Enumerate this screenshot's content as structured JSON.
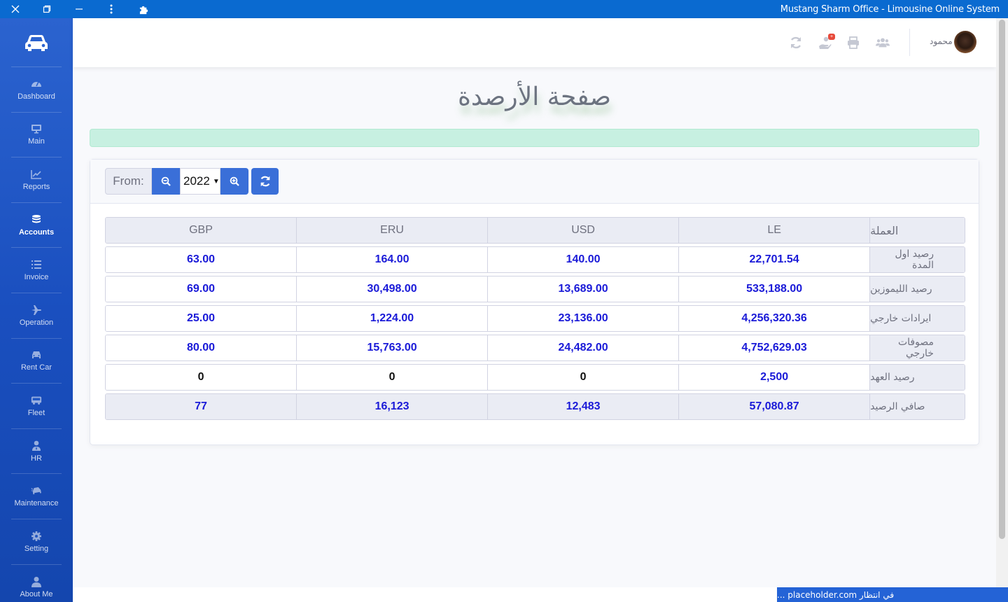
{
  "window": {
    "title": "Mustang Sharm Office - Limousine Online System"
  },
  "sidebar": {
    "brand_icon": "car-icon",
    "items": [
      {
        "label": "Dashboard",
        "icon": "tachometer-icon",
        "active": false
      },
      {
        "label": "Main",
        "icon": "desktop-icon",
        "active": false
      },
      {
        "label": "Reports",
        "icon": "chart-line-icon",
        "active": false
      },
      {
        "label": "Accounts",
        "icon": "coins-icon",
        "active": true
      },
      {
        "label": "Invoice",
        "icon": "list-icon",
        "active": false
      },
      {
        "label": "Operation",
        "icon": "plane-icon",
        "active": false
      },
      {
        "label": "Rent Car",
        "icon": "car-icon",
        "active": false
      },
      {
        "label": "Fleet",
        "icon": "bus-icon",
        "active": false
      },
      {
        "label": "HR",
        "icon": "user-tie-icon",
        "active": false
      },
      {
        "label": "Maintenance",
        "icon": "car-crash-icon",
        "active": false
      },
      {
        "label": "Setting",
        "icon": "cog-icon",
        "active": false
      },
      {
        "label": "About Me",
        "icon": "user-icon",
        "active": false
      }
    ]
  },
  "topbar": {
    "user_name": "محمود",
    "notification_badge": "+"
  },
  "page": {
    "title": "صفحة الأرصدة"
  },
  "filter": {
    "from_label": "From:",
    "year": "2022"
  },
  "table": {
    "headers": [
      "العملة",
      "LE",
      "USD",
      "ERU",
      "GBP"
    ],
    "rows": [
      {
        "label": "رصيد اول المدة",
        "values": [
          "22,701.54",
          "140.00",
          "164.00",
          "63.00"
        ]
      },
      {
        "label": "رصيد الليموزين",
        "values": [
          "533,188.00",
          "13,689.00",
          "30,498.00",
          "69.00"
        ]
      },
      {
        "label": "ايرادات خارجي",
        "values": [
          "4,256,320.36",
          "23,136.00",
          "1,224.00",
          "25.00"
        ]
      },
      {
        "label": "مصوفات خارجي",
        "values": [
          "4,752,629.03",
          "24,482.00",
          "15,763.00",
          "80.00"
        ]
      },
      {
        "label": "رصيد العهد",
        "values": [
          "2,500",
          "0",
          "0",
          "0"
        ]
      },
      {
        "label": "صافي الرصيد",
        "values": [
          "57,080.87",
          "12,483",
          "16,123",
          "77"
        ]
      }
    ]
  },
  "status": {
    "text": "في انتظار placeholder.com ..."
  },
  "colors": {
    "primary": "#3a6fd8",
    "sidebar": "#1a4fbf",
    "value_text": "#1a1ad8",
    "alert_bg": "#c7f0e1"
  }
}
